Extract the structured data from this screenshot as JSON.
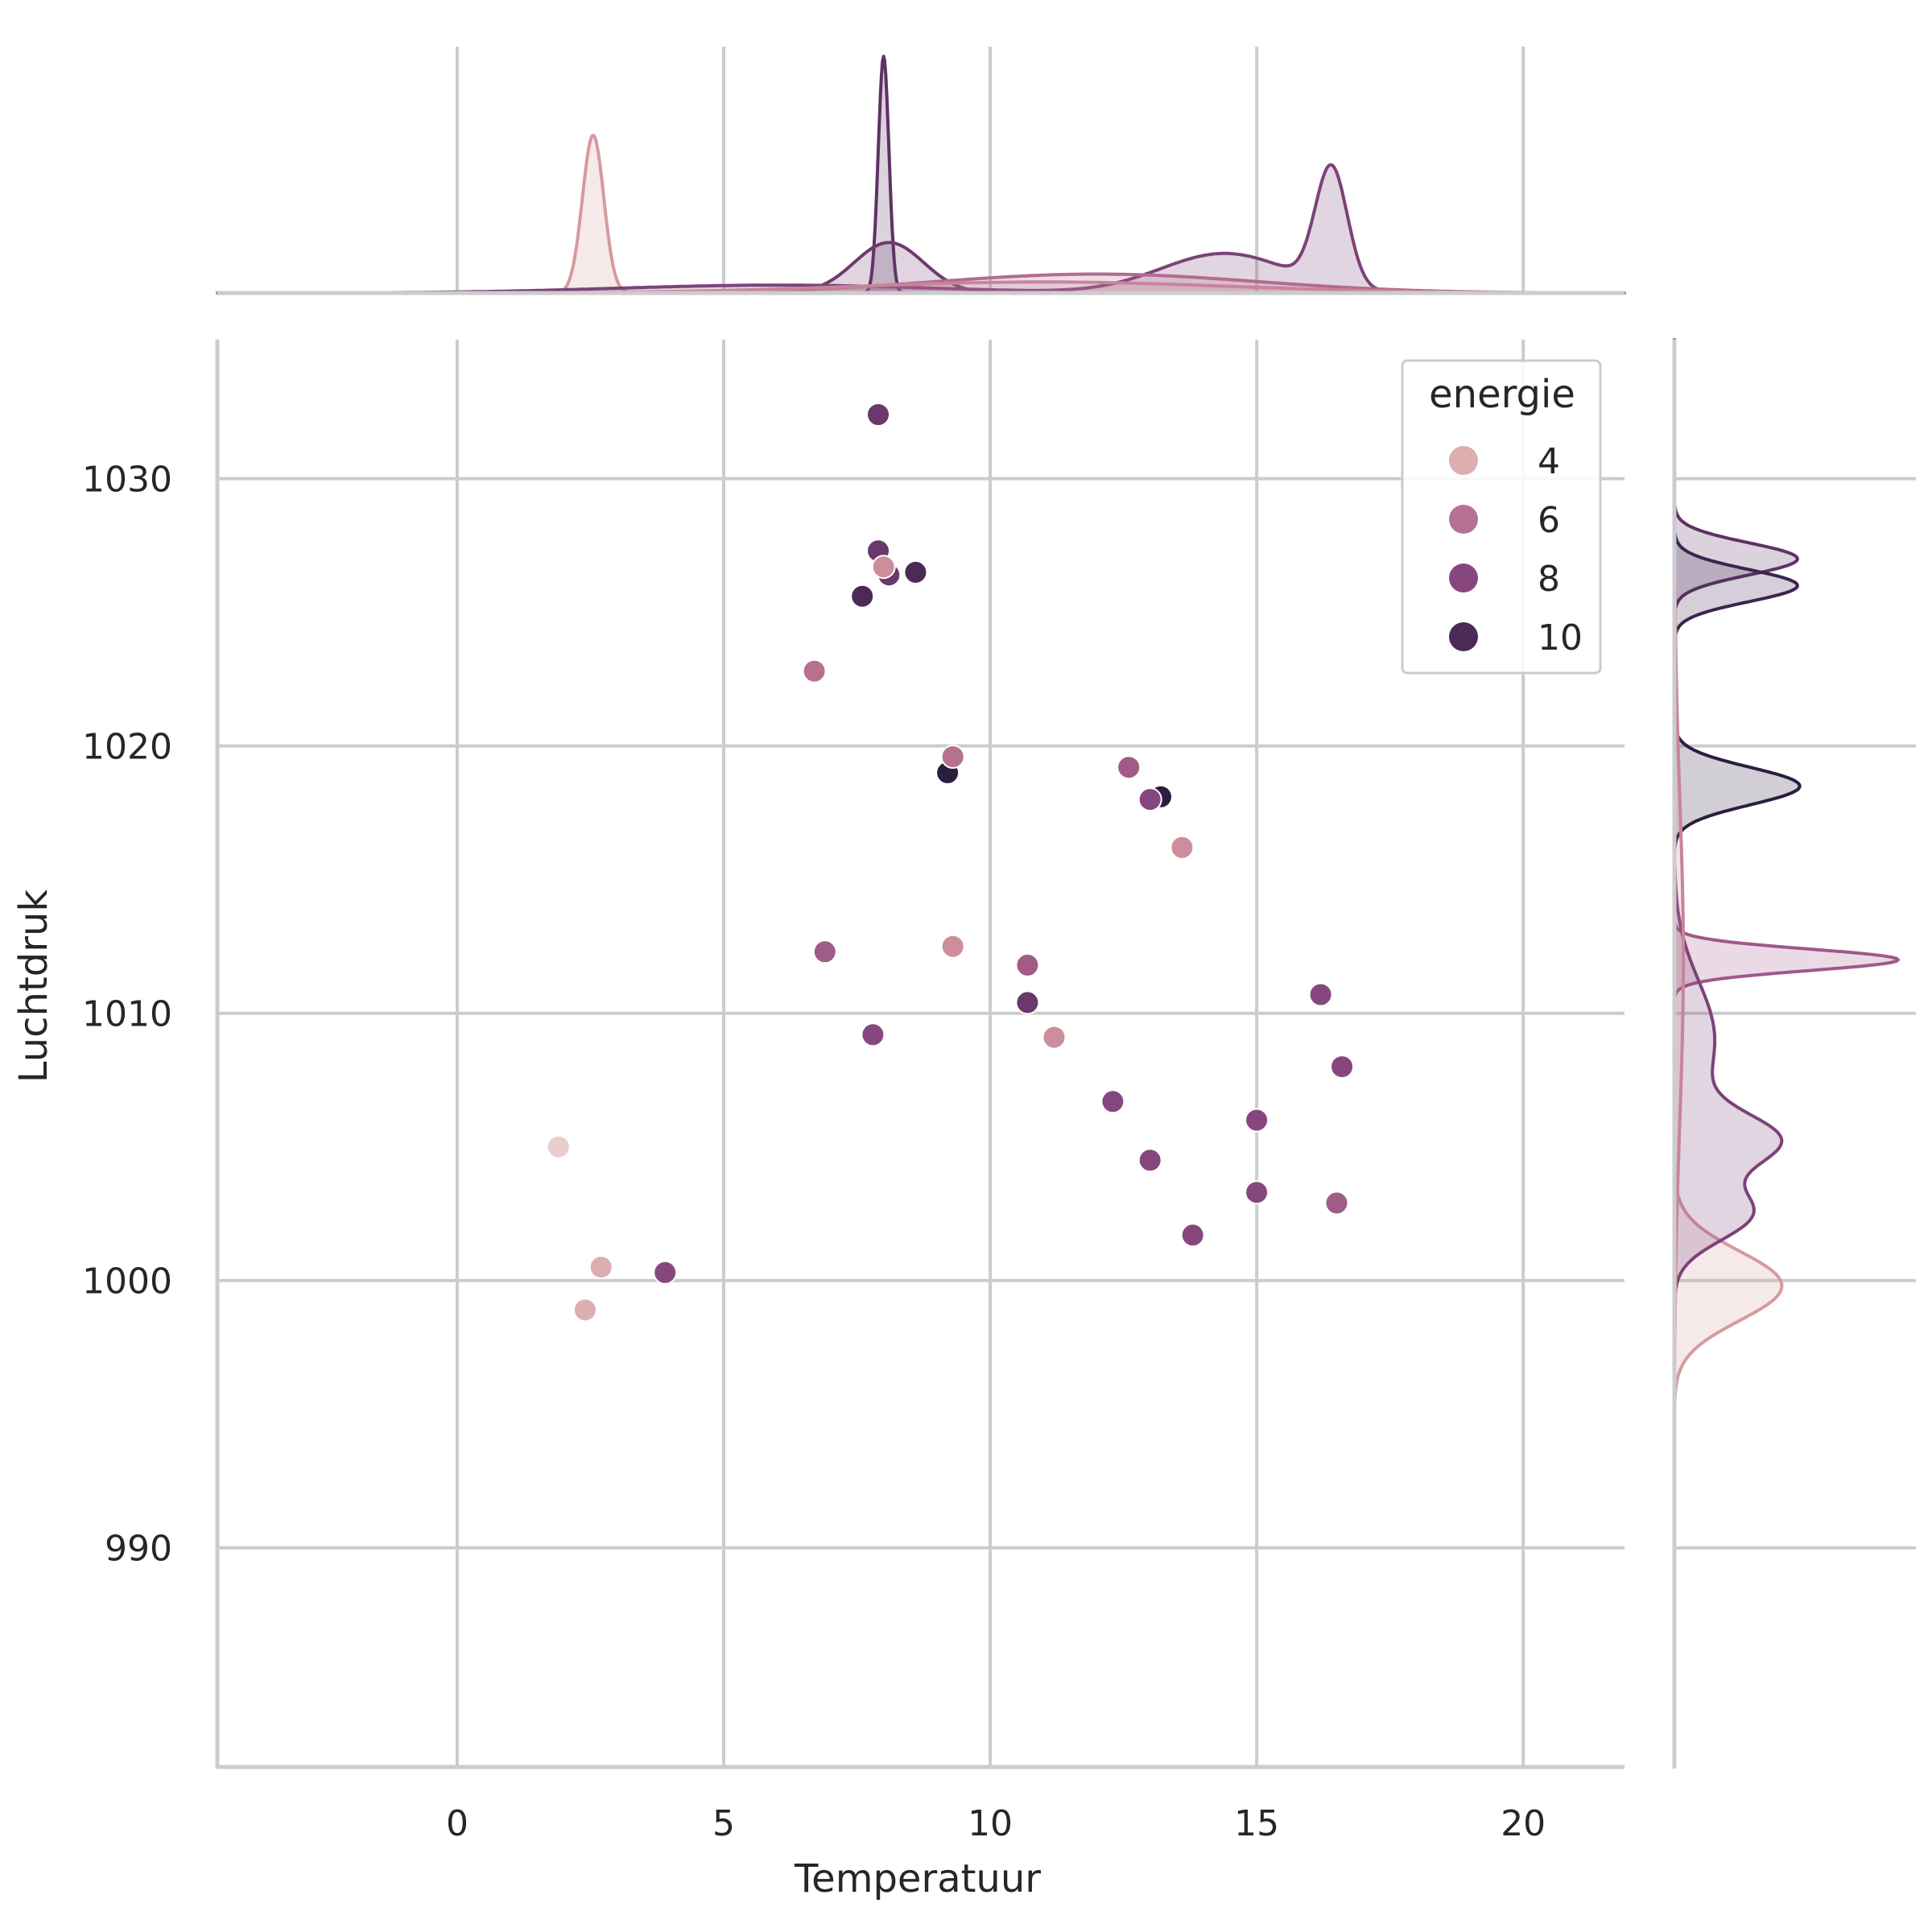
{
  "chart_data": {
    "type": "scatter",
    "subtype": "jointplot-with-kde-marginals",
    "xlabel": "Temperatuur",
    "ylabel": "Luchtdruk",
    "xlim": [
      -4.5,
      21.9
    ],
    "ylim": [
      981.8,
      1035.2
    ],
    "xticks": [
      0,
      5,
      10,
      15,
      20
    ],
    "yticks": [
      990,
      1000,
      1010,
      1020,
      1030
    ],
    "grid": true,
    "legend": {
      "title": "energie",
      "placement": "top-right",
      "entries": [
        {
          "label": "4",
          "value": 4
        },
        {
          "label": "6",
          "value": 6
        },
        {
          "label": "8",
          "value": 8
        },
        {
          "label": "10",
          "value": 10
        }
      ]
    },
    "hue_range": [
      3,
      11
    ],
    "hue_colors": [
      "#e8cfcb",
      "#d59a9f",
      "#b36b8e",
      "#8d4a82",
      "#5e3263",
      "#2c1e3e"
    ],
    "points": [
      {
        "x": 1.9,
        "y": 1005.0,
        "energie": 3
      },
      {
        "x": 2.7,
        "y": 1000.5,
        "energie": 4
      },
      {
        "x": 2.4,
        "y": 998.9,
        "energie": 4
      },
      {
        "x": 3.9,
        "y": 1000.3,
        "energie": 8
      },
      {
        "x": 6.7,
        "y": 1022.8,
        "energie": 6
      },
      {
        "x": 6.9,
        "y": 1012.3,
        "energie": 7
      },
      {
        "x": 7.6,
        "y": 1025.6,
        "energie": 10
      },
      {
        "x": 7.8,
        "y": 1009.2,
        "energie": 8
      },
      {
        "x": 7.9,
        "y": 1032.4,
        "energie": 9
      },
      {
        "x": 7.9,
        "y": 1027.3,
        "energie": 9
      },
      {
        "x": 8.1,
        "y": 1026.4,
        "energie": 9
      },
      {
        "x": 8.0,
        "y": 1026.7,
        "energie": 5
      },
      {
        "x": 8.6,
        "y": 1026.5,
        "energie": 10
      },
      {
        "x": 9.2,
        "y": 1019.0,
        "energie": 11
      },
      {
        "x": 9.3,
        "y": 1019.6,
        "energie": 6
      },
      {
        "x": 9.3,
        "y": 1012.5,
        "energie": 5
      },
      {
        "x": 10.7,
        "y": 1011.8,
        "energie": 7
      },
      {
        "x": 10.7,
        "y": 1010.4,
        "energie": 9
      },
      {
        "x": 11.2,
        "y": 1009.1,
        "energie": 5
      },
      {
        "x": 12.3,
        "y": 1006.7,
        "energie": 8
      },
      {
        "x": 12.6,
        "y": 1019.2,
        "energie": 7
      },
      {
        "x": 13.2,
        "y": 1018.1,
        "energie": 11
      },
      {
        "x": 13.0,
        "y": 1018.0,
        "energie": 8
      },
      {
        "x": 13.6,
        "y": 1016.2,
        "energie": 5
      },
      {
        "x": 13.0,
        "y": 1004.5,
        "energie": 8
      },
      {
        "x": 13.8,
        "y": 1001.7,
        "energie": 8
      },
      {
        "x": 15.0,
        "y": 1006.0,
        "energie": 8
      },
      {
        "x": 15.0,
        "y": 1003.3,
        "energie": 8
      },
      {
        "x": 16.2,
        "y": 1010.7,
        "energie": 8
      },
      {
        "x": 16.5,
        "y": 1002.9,
        "energie": 7
      },
      {
        "x": 16.6,
        "y": 1008.0,
        "energie": 8
      }
    ],
    "marginal_x": [
      {
        "name": "4",
        "color": "#d59a9f",
        "components": [
          {
            "mu": 2.55,
            "sigma": 0.2,
            "h": 1.0
          }
        ]
      },
      {
        "name": "10",
        "color": "#5e3263",
        "components": [
          {
            "mu": 8.0,
            "sigma": 0.1,
            "h": 1.5
          }
        ]
      },
      {
        "name": "9",
        "color": "#6e3a6e",
        "components": [
          {
            "mu": 8.1,
            "sigma": 0.65,
            "h": 0.32
          }
        ]
      },
      {
        "name": "8",
        "color": "#7c4279",
        "components": [
          {
            "mu": 16.4,
            "sigma": 0.3,
            "h": 0.75
          },
          {
            "mu": 14.4,
            "sigma": 1.2,
            "h": 0.25
          },
          {
            "mu": 6.0,
            "sigma": 3.0,
            "h": 0.05
          }
        ]
      },
      {
        "name": "6",
        "color": "#b36b8e",
        "components": [
          {
            "mu": 12.0,
            "sigma": 3.0,
            "h": 0.12
          }
        ]
      },
      {
        "name": "5",
        "color": "#c7849a",
        "components": [
          {
            "mu": 11.0,
            "sigma": 3.5,
            "h": 0.07
          }
        ]
      }
    ],
    "marginal_y": [
      {
        "name": "4",
        "color": "#d59a9f",
        "components": [
          {
            "mu": 999.8,
            "sigma": 1.3,
            "h": 0.48
          }
        ]
      },
      {
        "name": "7",
        "color": "#a0588a",
        "components": [
          {
            "mu": 1012.0,
            "sigma": 0.4,
            "h": 1.0
          }
        ]
      },
      {
        "name": "8",
        "color": "#7c4279",
        "components": [
          {
            "mu": 1005.2,
            "sigma": 1.0,
            "h": 0.43
          },
          {
            "mu": 1002.5,
            "sigma": 1.0,
            "h": 0.34
          },
          {
            "mu": 1009.0,
            "sigma": 2.2,
            "h": 0.18
          }
        ]
      },
      {
        "name": "9",
        "color": "#5e3263",
        "components": [
          {
            "mu": 1027.0,
            "sigma": 0.6,
            "h": 0.55
          }
        ]
      },
      {
        "name": "10",
        "color": "#3c2450",
        "components": [
          {
            "mu": 1026.0,
            "sigma": 0.6,
            "h": 0.55
          }
        ]
      },
      {
        "name": "11",
        "color": "#2c1e3e",
        "components": [
          {
            "mu": 1018.5,
            "sigma": 0.7,
            "h": 0.56
          }
        ]
      },
      {
        "name": "6",
        "color": "#c7849a",
        "components": [
          {
            "mu": 1012.0,
            "sigma": 6.0,
            "h": 0.04
          }
        ]
      }
    ]
  }
}
